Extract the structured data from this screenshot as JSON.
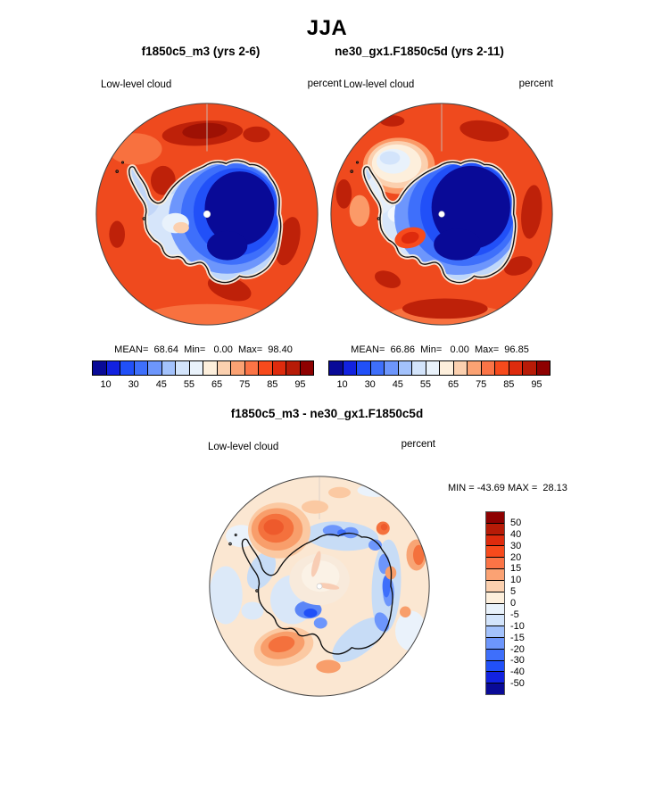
{
  "season_title": "JJA",
  "panels": {
    "left": {
      "subtitle": "f1850c5_m3 (yrs 2-6)",
      "field_label": "Low-level cloud",
      "units_label": "percent",
      "stats_line": "MEAN=  68.64  Min=   0.00  Max=  98.40"
    },
    "right": {
      "subtitle": "ne30_gx1.F1850c5d (yrs 2-11)",
      "field_label": "Low-level cloud",
      "units_label": "percent",
      "stats_line": "MEAN=  66.86  Min=   0.00  Max=  96.85"
    },
    "diff": {
      "subtitle": "f1850c5_m3 - ne30_gx1.F1850c5d",
      "field_label": "Low-level cloud",
      "units_label": "percent",
      "minmax_line": "MIN = -43.69 MAX =  28.13"
    }
  },
  "colorbar": {
    "tick_labels": [
      "10",
      "30",
      "45",
      "55",
      "65",
      "75",
      "85",
      "95"
    ],
    "colors": [
      "#090A97",
      "#1222E0",
      "#2150F8",
      "#3E6FFB",
      "#6D96FC",
      "#A3C2FC",
      "#D3E4FB",
      "#E9F2FB",
      "#FDEFDC",
      "#FBD0AF",
      "#FBA273",
      "#FB7446",
      "#F74A1C",
      "#DE2B0D",
      "#B71B07",
      "#8E0101"
    ]
  },
  "diff_colorbar": {
    "boundary_labels": [
      "50",
      "40",
      "30",
      "20",
      "15",
      "10",
      "5",
      "0",
      "-5",
      "-10",
      "-15",
      "-20",
      "-30",
      "-40",
      "-50"
    ],
    "colors": [
      "#8E0101",
      "#B71B07",
      "#DE2B0D",
      "#F74A1C",
      "#FB7446",
      "#FBA273",
      "#FBD0AF",
      "#FDEFDC",
      "#E9F2FB",
      "#D3E4FB",
      "#A3C2FC",
      "#6D96FC",
      "#3E6FFB",
      "#2150F8",
      "#1222E0",
      "#090A97"
    ]
  },
  "chart_data": [
    {
      "type": "heatmap",
      "subtype": "filled-contour-map",
      "projection": "south-polar-stereographic",
      "season": "JJA",
      "title": "f1850c5_m3 (yrs 2-6)",
      "variable": "Low-level cloud",
      "units": "percent",
      "stats": {
        "mean": 68.64,
        "min": 0.0,
        "max": 98.4
      },
      "contour_levels": [
        10,
        20,
        30,
        40,
        45,
        50,
        55,
        60,
        65,
        70,
        75,
        80,
        85,
        90,
        95
      ],
      "labeled_ticks": [
        10,
        30,
        45,
        55,
        65,
        75,
        85,
        95
      ],
      "legend_position": "below",
      "notes": "High cloud (orange/red 75-95%) over Southern Ocean, dark red patches; low cloud (blue to navy <30%) over Antarctic interior; white dot at pole"
    },
    {
      "type": "heatmap",
      "subtype": "filled-contour-map",
      "projection": "south-polar-stereographic",
      "season": "JJA",
      "title": "ne30_gx1.F1850c5d (yrs 2-11)",
      "variable": "Low-level cloud",
      "units": "percent",
      "stats": {
        "mean": 66.86,
        "min": 0.0,
        "max": 96.85
      },
      "contour_levels": [
        10,
        20,
        30,
        40,
        45,
        50,
        55,
        60,
        65,
        70,
        75,
        80,
        85,
        90,
        95
      ],
      "labeled_ticks": [
        10,
        30,
        45,
        55,
        65,
        75,
        85,
        95
      ],
      "legend_position": "below",
      "notes": "Similar to left panel but pale/near-white cloud minimum over Weddell Sea region and larger navy interior minimum"
    },
    {
      "type": "heatmap",
      "subtype": "filled-contour-difference-map",
      "projection": "south-polar-stereographic",
      "season": "JJA",
      "title": "f1850c5_m3 - ne30_gx1.F1850c5d",
      "variable": "Low-level cloud",
      "units": "percent",
      "stats": {
        "min": -43.69,
        "max": 28.13
      },
      "contour_levels": [
        -50,
        -40,
        -30,
        -20,
        -15,
        -10,
        -5,
        0,
        5,
        10,
        15,
        20,
        30,
        40,
        50
      ],
      "legend_position": "right",
      "notes": "Mostly pale cream (0 to +5); orange positive anomalies over Weddell Sea and Ross Sea sectors; blue negative anomalies along East Antarctic coast and West Antarctica"
    }
  ]
}
